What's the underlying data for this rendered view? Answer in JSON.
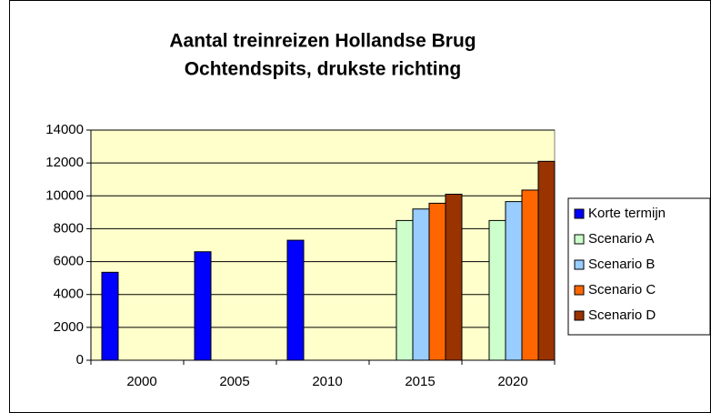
{
  "chart_data": {
    "type": "bar",
    "title": "Aantal treinreizen Hollandse Brug",
    "subtitle": "Ochtendspits, drukste richting",
    "categories": [
      "2000",
      "2005",
      "2010",
      "2015",
      "2020"
    ],
    "series": [
      {
        "name": "Korte termijn",
        "color": "#0000ff",
        "values": [
          5350,
          6600,
          7300,
          null,
          null
        ]
      },
      {
        "name": "Scenario A",
        "color": "#ccffcc",
        "values": [
          null,
          null,
          null,
          8500,
          8500
        ]
      },
      {
        "name": "Scenario B",
        "color": "#99ccff",
        "values": [
          null,
          null,
          null,
          9200,
          9650
        ]
      },
      {
        "name": "Scenario C",
        "color": "#ff6600",
        "values": [
          null,
          null,
          null,
          9550,
          10350
        ]
      },
      {
        "name": "Scenario D",
        "color": "#993300",
        "values": [
          null,
          null,
          null,
          10100,
          12100
        ]
      }
    ],
    "ylim": [
      0,
      14000
    ],
    "yticks": [
      0,
      2000,
      4000,
      6000,
      8000,
      10000,
      12000,
      14000
    ],
    "grid": true,
    "legend": "right",
    "plot_background": "#ffffcc"
  }
}
